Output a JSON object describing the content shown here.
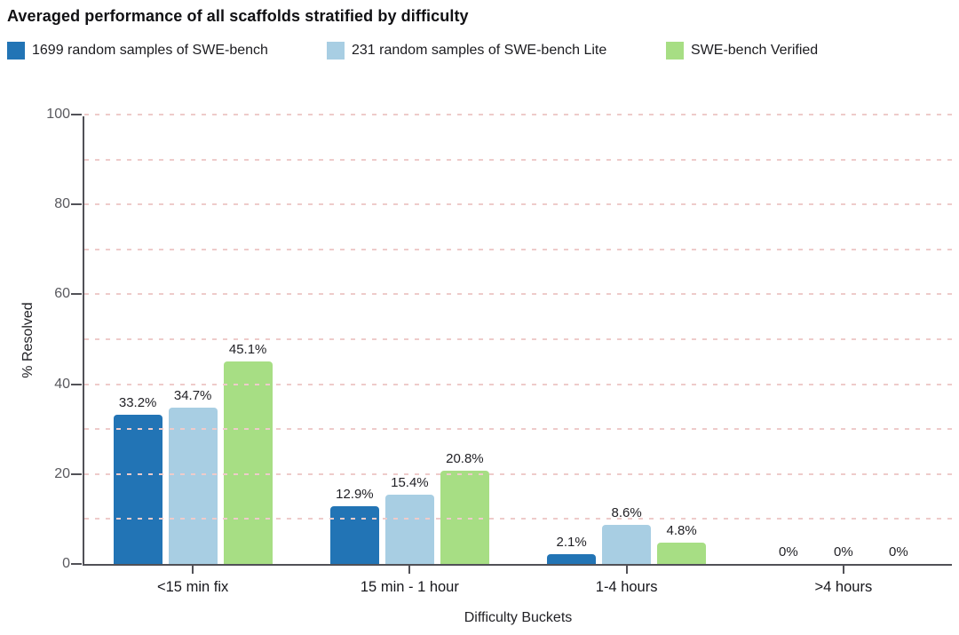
{
  "title": "Averaged performance of all scaffolds stratified by difficulty",
  "chart_data": {
    "type": "bar",
    "title": "Averaged performance of all scaffolds stratified by difficulty",
    "xlabel": "Difficulty Buckets",
    "ylabel": "% Resolved",
    "categories": [
      "<15 min fix",
      "15 min - 1 hour",
      "1-4 hours",
      ">4 hours"
    ],
    "series": [
      {
        "name": "1699 random samples of SWE-bench",
        "color": "#2274b5",
        "values": [
          33.2,
          12.9,
          2.1,
          0
        ],
        "labels": [
          "33.2%",
          "12.9%",
          "2.1%",
          "0%"
        ]
      },
      {
        "name": "231 random samples of SWE-bench Lite",
        "color": "#a8cee3",
        "values": [
          34.7,
          15.4,
          8.6,
          0
        ],
        "labels": [
          "34.7%",
          "15.4%",
          "8.6%",
          "0%"
        ]
      },
      {
        "name": "SWE-bench Verified",
        "color": "#a7de84",
        "values": [
          45.1,
          20.8,
          4.8,
          0
        ],
        "labels": [
          "45.1%",
          "20.8%",
          "4.8%",
          "0%"
        ]
      }
    ],
    "ylim": [
      0,
      100
    ],
    "yticks": [
      0,
      20,
      40,
      60,
      80,
      100
    ],
    "grid_step": 10,
    "grid_color": "#eecbca",
    "grid_style": "dashed",
    "legend_position": "top"
  }
}
